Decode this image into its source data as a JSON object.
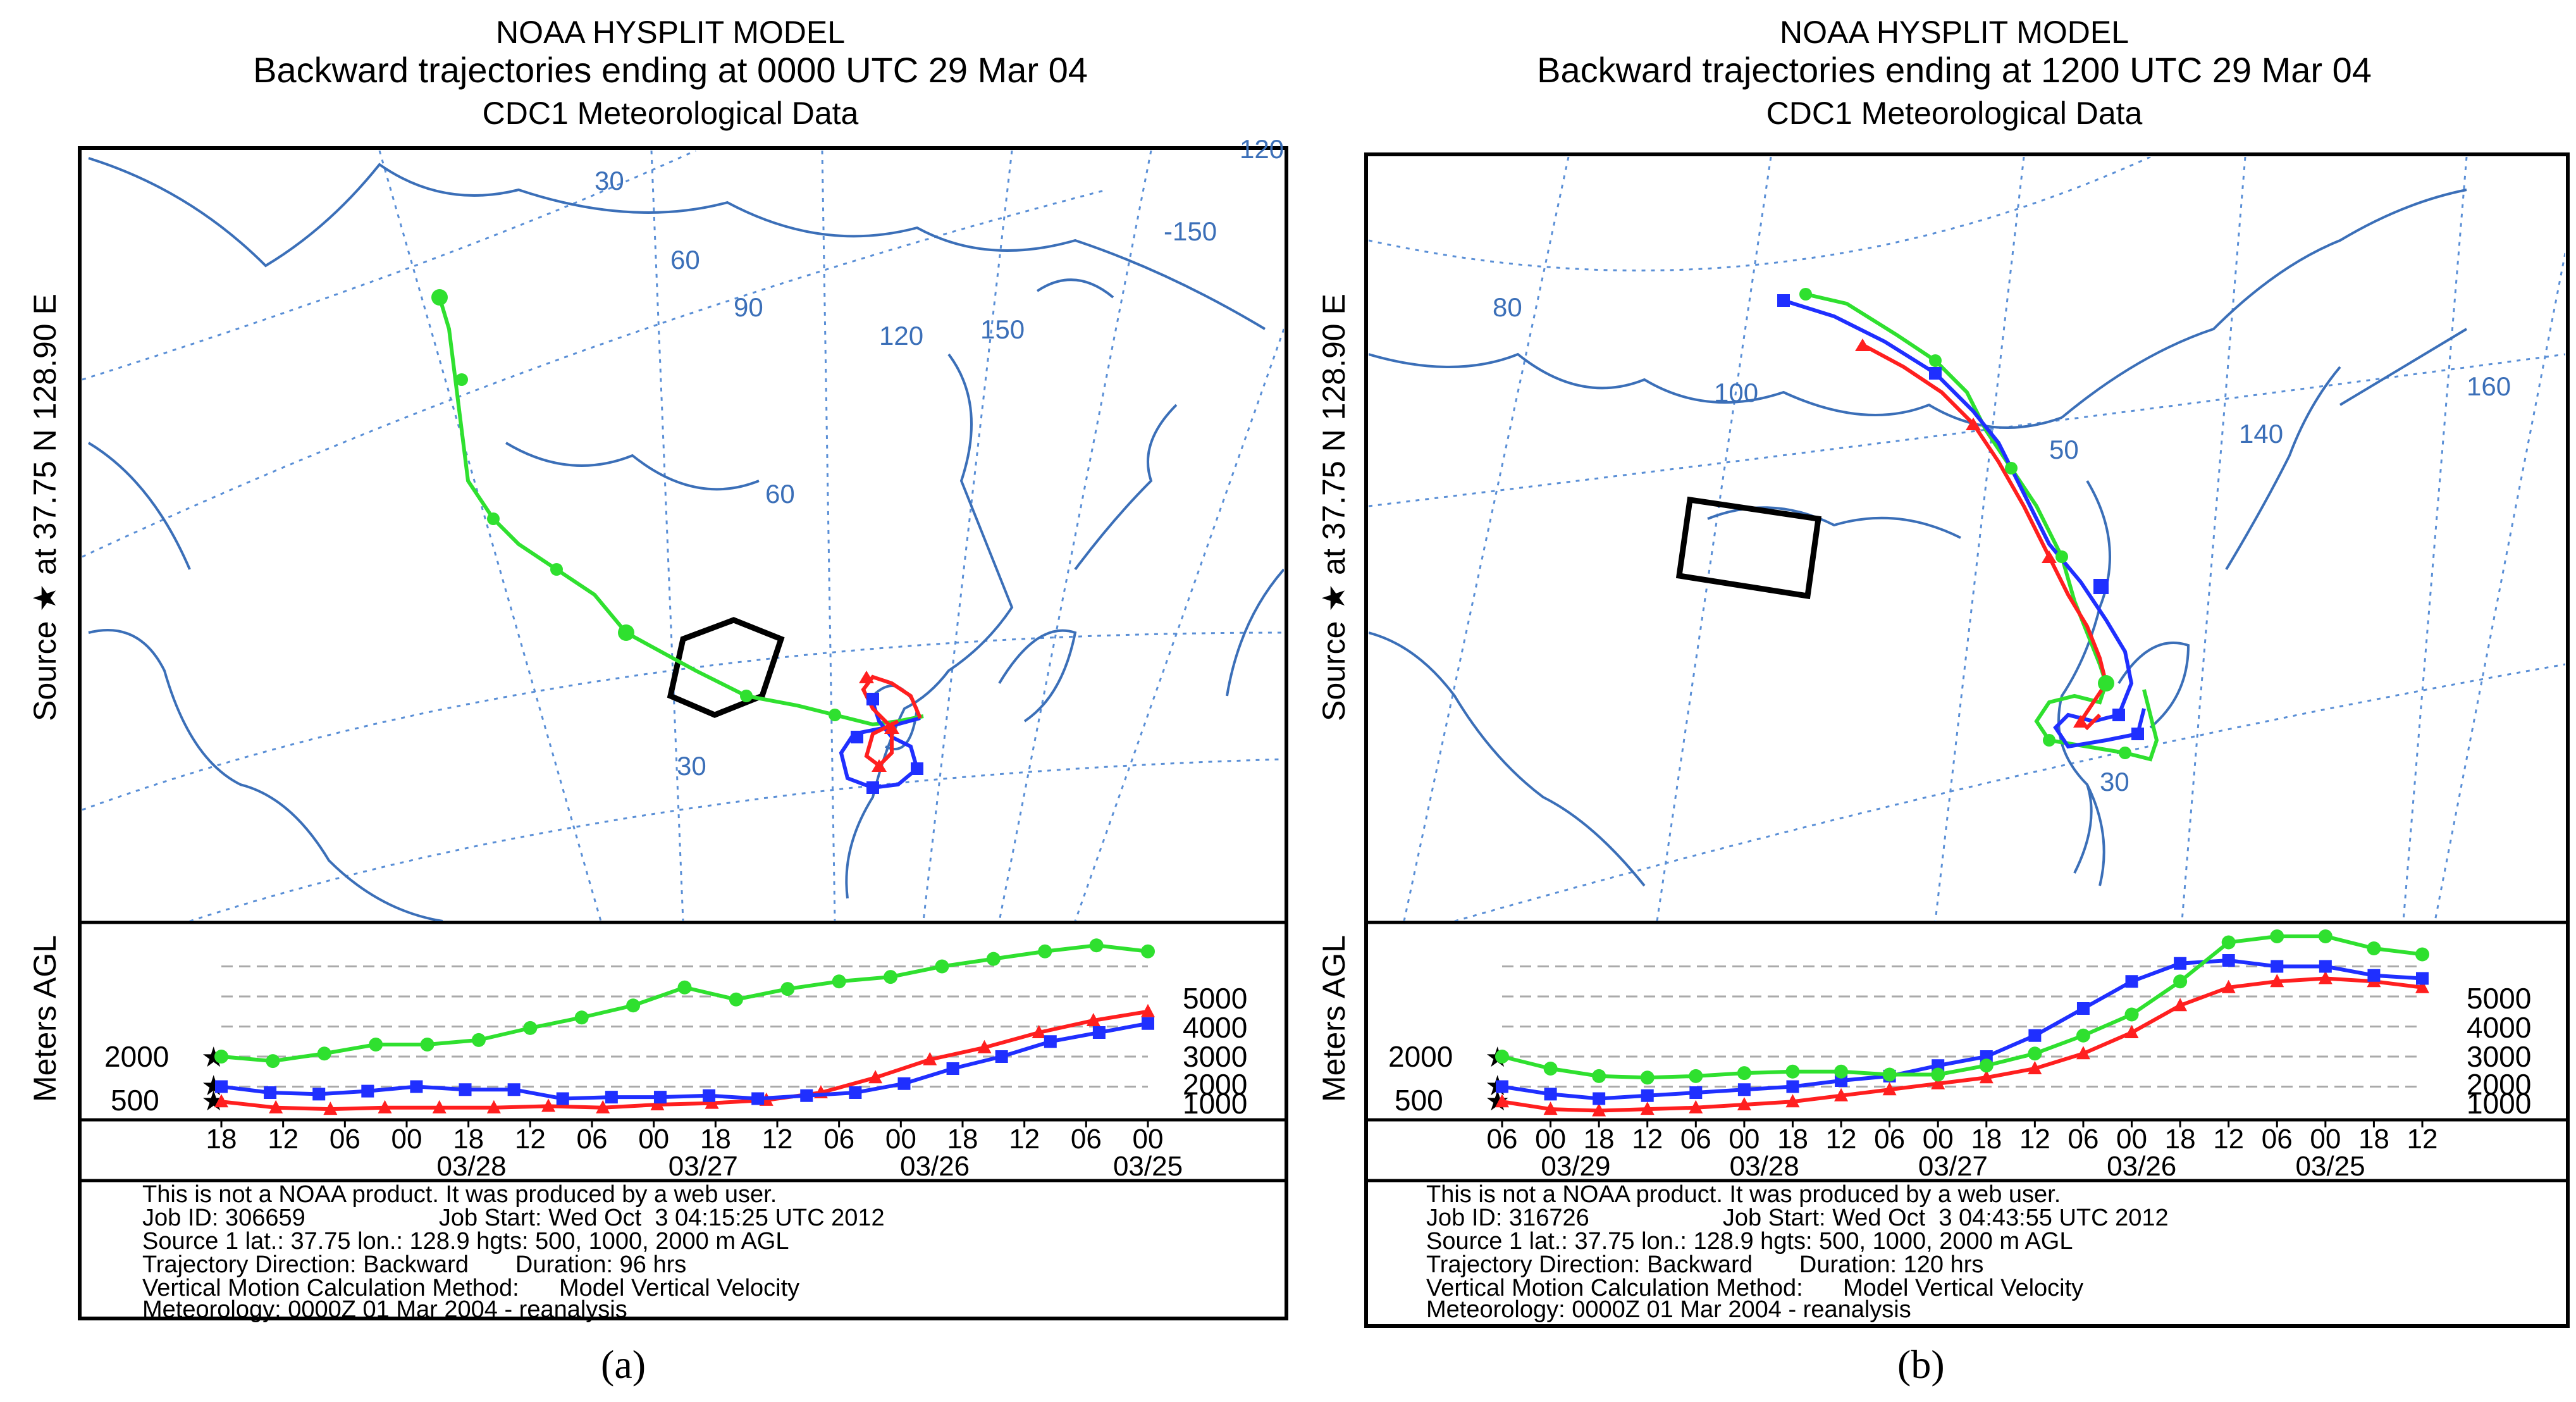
{
  "panels": [
    {
      "id": "a",
      "caption": "(a)",
      "title_line1": "NOAA HYSPLIT MODEL",
      "title_line2": "Backward trajectories ending at 0000 UTC 29 Mar 04",
      "title_line3": "CDC1 Meteorological Data",
      "side_label": "Source ★ at   37.75 N  128.90 E",
      "map_labels": [
        "30",
        "60",
        "90",
        "120",
        "150",
        "-150",
        "120",
        "60",
        "30"
      ],
      "y_axis_label": "Meters AGL",
      "right_ticks": [
        "5000",
        "4000",
        "3000",
        "2000",
        "1000"
      ],
      "left_ticks": [
        "2000",
        "500"
      ],
      "time_ticks": [
        "18",
        "12",
        "06",
        "00",
        "18",
        "12",
        "06",
        "00",
        "18",
        "12",
        "06",
        "00",
        "18",
        "12",
        "06",
        "00"
      ],
      "dates": [
        "03/28",
        "03/27",
        "03/26",
        "03/25"
      ],
      "footer": [
        "This is not a NOAA product. It was produced by a web user.",
        "Job ID: 306659                    Job Start: Wed Oct  3 04:15:25 UTC 2012",
        "Source 1 lat.: 37.75  lon.: 128.9  hgts: 500, 1000, 2000 m AGL",
        "Trajectory Direction: Backward       Duration: 96 hrs",
        "Vertical Motion Calculation Method:      Model Vertical Velocity",
        "Meteorology: 0000Z 01 Mar 2004 - reanalysis"
      ],
      "heights_green": [
        2000,
        1850,
        2100,
        2400,
        2400,
        2550,
        2950,
        3300,
        3700,
        4300,
        3900,
        4250,
        4500,
        4650,
        5000,
        5250,
        5500,
        5700,
        5500
      ],
      "heights_blue": [
        1000,
        800,
        750,
        850,
        1000,
        900,
        900,
        600,
        650,
        650,
        700,
        600,
        700,
        800,
        1100,
        1600,
        2000,
        2500,
        2800,
        3100
      ],
      "heights_red": [
        500,
        300,
        250,
        300,
        300,
        300,
        350,
        300,
        400,
        450,
        550,
        800,
        1300,
        1900,
        2300,
        2800,
        3200,
        3500
      ]
    },
    {
      "id": "b",
      "caption": "(b)",
      "title_line1": "NOAA HYSPLIT MODEL",
      "title_line2": "Backward trajectories ending at 1200 UTC 29 Mar 04",
      "title_line3": "CDC1 Meteorological Data",
      "side_label": "Source ★ at   37.75 N  128.90 E",
      "map_labels": [
        "80",
        "100",
        "50",
        "140",
        "160",
        "30"
      ],
      "y_axis_label": "Meters AGL",
      "right_ticks": [
        "5000",
        "4000",
        "3000",
        "2000",
        "1000"
      ],
      "left_ticks": [
        "2000",
        "500"
      ],
      "time_ticks": [
        "06",
        "00",
        "18",
        "12",
        "06",
        "00",
        "18",
        "12",
        "06",
        "00",
        "18",
        "12",
        "06",
        "00",
        "18",
        "12",
        "06",
        "00",
        "18",
        "12"
      ],
      "dates": [
        "03/29",
        "03/28",
        "03/27",
        "03/26",
        "03/25"
      ],
      "footer": [
        "This is not a NOAA product. It was produced by a web user.",
        "Job ID: 316726                    Job Start: Wed Oct  3 04:43:55 UTC 2012",
        "Source 1 lat.: 37.75  lon.: 128.9  hgts: 500, 1000, 2000 m AGL",
        "Trajectory Direction: Backward       Duration: 120 hrs",
        "Vertical Motion Calculation Method:      Model Vertical Velocity",
        "Meteorology: 0000Z 01 Mar 2004 - reanalysis"
      ],
      "heights_green": [
        2000,
        1600,
        1350,
        1300,
        1350,
        1450,
        1500,
        1500,
        1400,
        1400,
        1700,
        2100,
        2700,
        3400,
        4500,
        5800,
        6000,
        6000,
        5600,
        5400
      ],
      "heights_blue": [
        1000,
        750,
        600,
        700,
        800,
        900,
        1000,
        1200,
        1350,
        1700,
        2000,
        2700,
        3600,
        4500,
        5100,
        5200,
        5000,
        5000,
        4700,
        4600
      ],
      "heights_red": [
        500,
        250,
        200,
        250,
        300,
        400,
        500,
        700,
        900,
        1100,
        1300,
        1600,
        2100,
        2800,
        3700,
        4300,
        4500,
        4600,
        4500,
        4300
      ]
    }
  ],
  "colors": {
    "map_line": "#3b6fb8",
    "grid": "#5a8fd6",
    "green": "#2fe02f",
    "blue": "#1f2fff",
    "red": "#ff1f1f"
  }
}
